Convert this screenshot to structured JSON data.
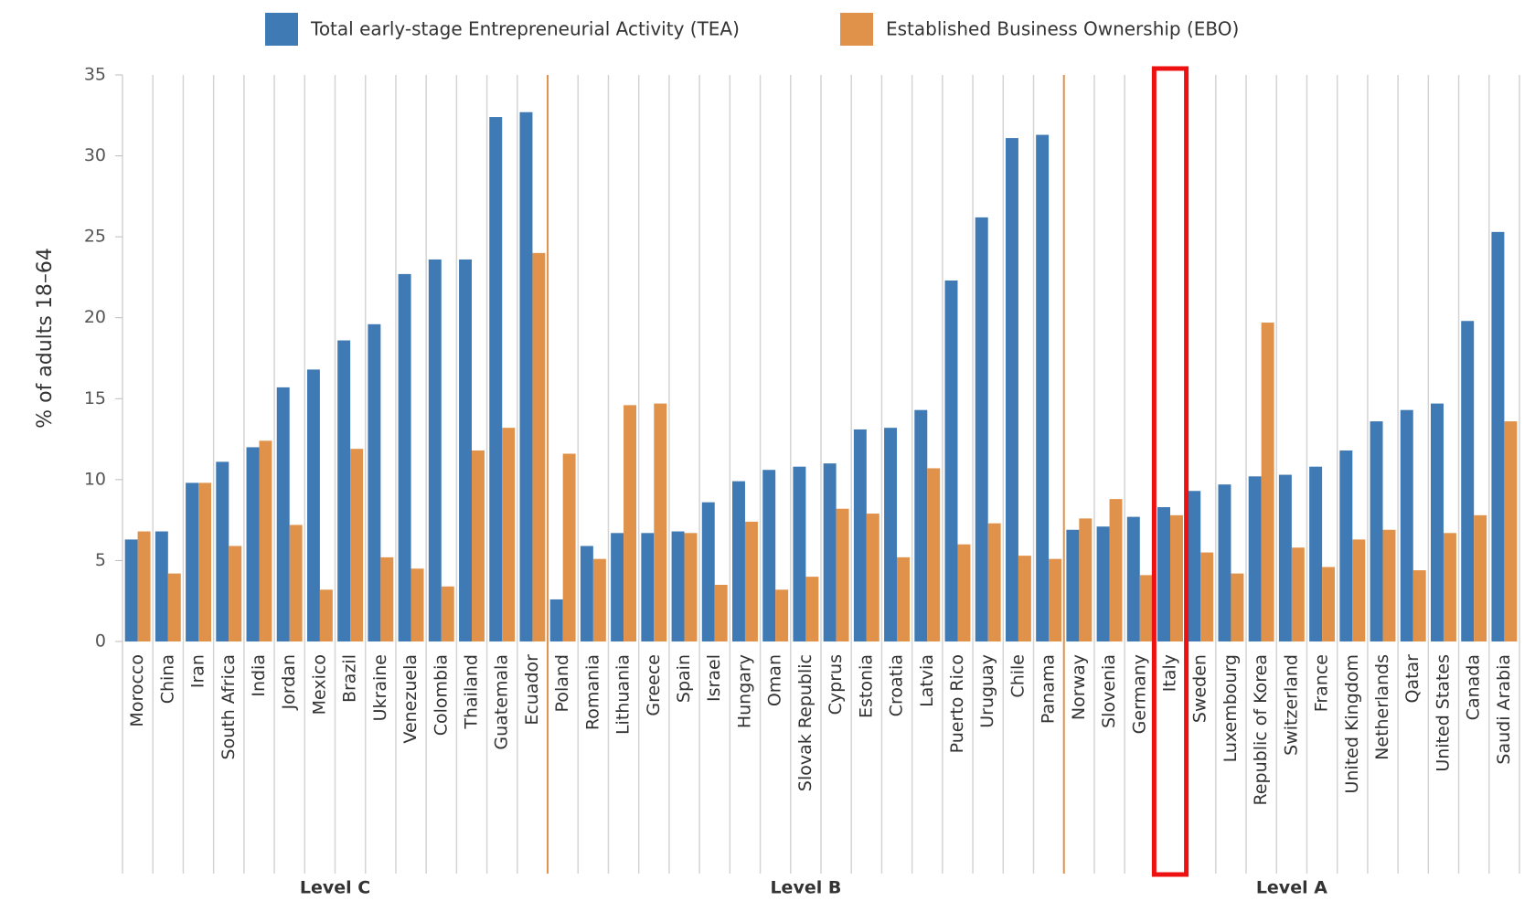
{
  "chart_data": {
    "type": "bar",
    "y_label": "% of adults 18–64",
    "categories": [
      "Morocco",
      "China",
      "Iran",
      "South Africa",
      "India",
      "Jordan",
      "Mexico",
      "Brazil",
      "Ukraine",
      "Venezuela",
      "Colombia",
      "Thailand",
      "Guatemala",
      "Ecuador",
      "Poland",
      "Romania",
      "Lithuania",
      "Greece",
      "Spain",
      "Israel",
      "Hungary",
      "Oman",
      "Slovak Republic",
      "Cyprus",
      "Estonia",
      "Croatia",
      "Latvia",
      "Puerto Rico",
      "Uruguay",
      "Chile",
      "Panama",
      "Norway",
      "Slovenia",
      "Germany",
      "Italy",
      "Sweden",
      "Luxembourg",
      "Republic of Korea",
      "Switzerland",
      "France",
      "United Kingdom",
      "Netherlands",
      "Qatar",
      "United States",
      "Canada",
      "Saudi Arabia"
    ],
    "category_groups": [
      "Level C",
      "Level C",
      "Level C",
      "Level C",
      "Level C",
      "Level C",
      "Level C",
      "Level C",
      "Level C",
      "Level C",
      "Level C",
      "Level C",
      "Level C",
      "Level C",
      "Level B",
      "Level B",
      "Level B",
      "Level B",
      "Level B",
      "Level B",
      "Level B",
      "Level B",
      "Level B",
      "Level B",
      "Level B",
      "Level B",
      "Level B",
      "Level B",
      "Level B",
      "Level B",
      "Level B",
      "Level A",
      "Level A",
      "Level A",
      "Level A",
      "Level A",
      "Level A",
      "Level A",
      "Level A",
      "Level A",
      "Level A",
      "Level A",
      "Level A",
      "Level A",
      "Level A",
      "Level A"
    ],
    "series": [
      {
        "name": "Total early-stage Entrepreneurial Activity (TEA)",
        "color": "#3f7ab5",
        "values": [
          6.3,
          6.8,
          9.8,
          11.1,
          12.0,
          15.7,
          16.8,
          18.6,
          19.6,
          22.7,
          23.6,
          23.6,
          32.4,
          32.7,
          2.6,
          5.9,
          6.7,
          6.7,
          6.8,
          8.6,
          9.9,
          10.6,
          10.8,
          11.0,
          13.1,
          13.2,
          14.3,
          22.3,
          26.2,
          31.1,
          31.3,
          6.9,
          7.1,
          7.7,
          8.3,
          9.3,
          9.7,
          10.2,
          10.3,
          10.8,
          11.8,
          13.6,
          14.3,
          14.7,
          19.8,
          25.3
        ]
      },
      {
        "name": "Established Business Ownership (EBO)",
        "color": "#e0914a",
        "values": [
          6.8,
          4.2,
          9.8,
          5.9,
          12.4,
          7.2,
          3.2,
          11.9,
          5.2,
          4.5,
          3.4,
          11.8,
          13.2,
          24.0,
          11.6,
          5.1,
          14.6,
          14.7,
          6.7,
          3.5,
          7.4,
          3.2,
          4.0,
          8.2,
          7.9,
          5.2,
          10.7,
          6.0,
          7.3,
          5.3,
          5.1,
          7.6,
          8.8,
          4.1,
          7.8,
          5.5,
          4.2,
          19.7,
          5.8,
          4.6,
          6.3,
          6.9,
          4.4,
          6.7,
          7.8,
          13.6
        ]
      }
    ],
    "ylim": [
      0,
      35
    ],
    "yticks": [
      0,
      5,
      10,
      15,
      20,
      25,
      30,
      35
    ],
    "grid": false,
    "group_separator_color": "#e0914a",
    "highlight": "Italy",
    "highlight_color": "#ee1111"
  }
}
